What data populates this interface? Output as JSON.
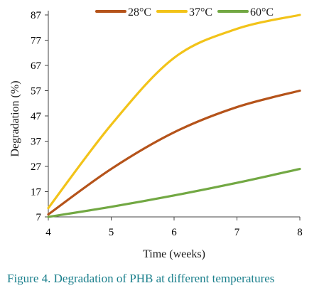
{
  "caption": "Figure 4. Degradation of PHB at different temperatures",
  "chart_data": {
    "type": "line",
    "title": "",
    "xlabel": "Time (weeks)",
    "ylabel": "Degradation (%)",
    "xlim": [
      4,
      8
    ],
    "ylim": [
      7,
      90
    ],
    "xticks": [
      4,
      5,
      6,
      7,
      8
    ],
    "yticks": [
      7,
      17,
      27,
      37,
      47,
      57,
      67,
      77,
      87
    ],
    "grid": false,
    "legend_position": "top",
    "series": [
      {
        "name": "28°C",
        "color": "#b5531a",
        "x": [
          4,
          5,
          6,
          7,
          8
        ],
        "y": [
          8,
          26,
          40.5,
          50.5,
          57
        ]
      },
      {
        "name": "37°C",
        "color": "#f2c319",
        "x": [
          4,
          5,
          6,
          7,
          8
        ],
        "y": [
          10.5,
          43.5,
          70,
          81.5,
          87
        ]
      },
      {
        "name": "60°C",
        "color": "#72a843",
        "x": [
          4,
          5,
          6,
          7,
          8
        ],
        "y": [
          7,
          11,
          15.5,
          20.5,
          26
        ]
      }
    ]
  }
}
